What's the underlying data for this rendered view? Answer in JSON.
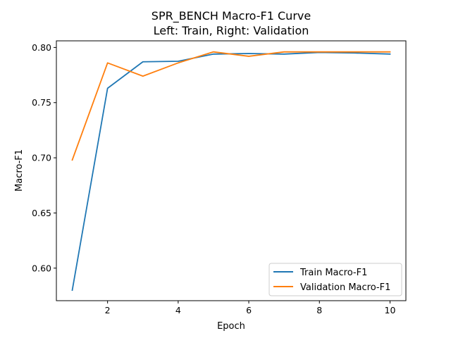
{
  "chart_data": {
    "type": "line",
    "title_line1": "SPR_BENCH Macro-F1 Curve",
    "title_line2": "Left: Train, Right: Validation",
    "xlabel": "Epoch",
    "ylabel": "Macro-F1",
    "xlim": [
      0.55,
      10.45
    ],
    "ylim": [
      0.5705,
      0.806
    ],
    "xticks": [
      2,
      4,
      6,
      8,
      10
    ],
    "yticks": [
      0.6,
      0.65,
      0.7,
      0.75,
      0.8
    ],
    "ytick_labels": [
      "0.60",
      "0.65",
      "0.70",
      "0.75",
      "0.80"
    ],
    "grid": false,
    "legend_position": "lower-right",
    "x": [
      1,
      2,
      3,
      4,
      5,
      6,
      7,
      8,
      9,
      10
    ],
    "series": [
      {
        "name": "Train Macro-F1",
        "color": "#1f77b4",
        "values": [
          0.58,
          0.763,
          0.787,
          0.7875,
          0.794,
          0.7945,
          0.794,
          0.7955,
          0.795,
          0.794
        ]
      },
      {
        "name": "Validation Macro-F1",
        "color": "#ff7f0e",
        "values": [
          0.698,
          0.786,
          0.774,
          0.786,
          0.796,
          0.792,
          0.796,
          0.796,
          0.796,
          0.796
        ]
      }
    ]
  }
}
